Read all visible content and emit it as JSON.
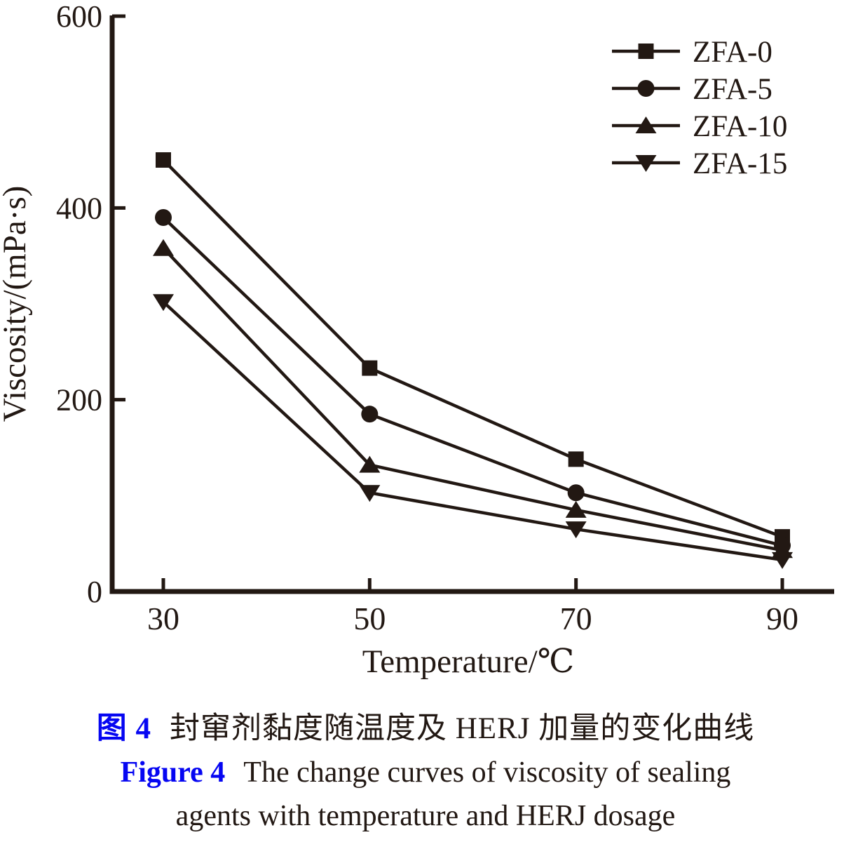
{
  "chart_data": {
    "type": "line",
    "title": "",
    "xlabel": "Temperature/℃",
    "ylabel": "Viscosity/(mPa·s)",
    "x": [
      30,
      50,
      70,
      90
    ],
    "xticks": [
      "30",
      "50",
      "70",
      "90"
    ],
    "yticks": [
      "0",
      "200",
      "400",
      "600"
    ],
    "xlim": [
      25,
      95
    ],
    "ylim": [
      0,
      600
    ],
    "grid": false,
    "legend_position": "top-right-inside",
    "series": [
      {
        "name": "ZFA-0",
        "marker": "square",
        "values": [
          450,
          233,
          138,
          57
        ]
      },
      {
        "name": "ZFA-5",
        "marker": "circle",
        "values": [
          390,
          185,
          103,
          48
        ]
      },
      {
        "name": "ZFA-10",
        "marker": "triangle-up",
        "values": [
          358,
          132,
          85,
          43
        ]
      },
      {
        "name": "ZFA-15",
        "marker": "triangle-down",
        "values": [
          302,
          103,
          65,
          33
        ]
      }
    ]
  },
  "caption": {
    "cn_label": "图 4",
    "cn_text": "封窜剂黏度随温度及 HERJ 加量的变化曲线",
    "en_label": "Figure 4",
    "en_line1": "The change curves of viscosity of sealing",
    "en_line2": "agents with temperature and HERJ dosage"
  },
  "colors": {
    "ink": "#221813",
    "figure_label_blue": "#0606f2",
    "background": "#ffffff"
  }
}
